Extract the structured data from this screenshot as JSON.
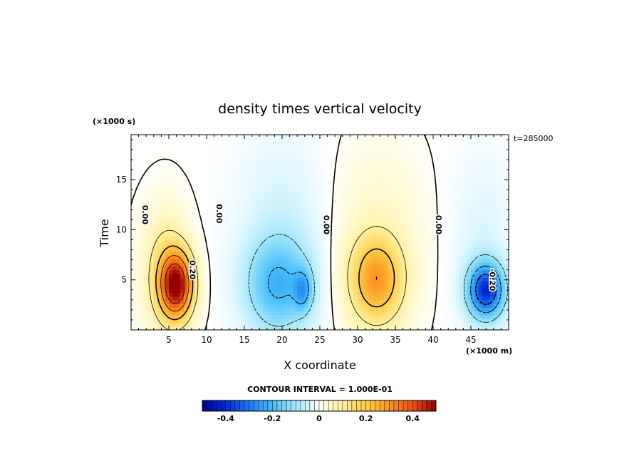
{
  "chart_data": {
    "type": "heatmap",
    "title": "density times vertical velocity",
    "xlabel": "X coordinate",
    "ylabel": "Time",
    "x_units": "(×1000 m)",
    "y_units": "(×1000 s)",
    "time_stamp": "t=285000",
    "xlim": [
      0,
      50
    ],
    "ylim": [
      0,
      19.5
    ],
    "x_ticks": [
      5,
      10,
      15,
      20,
      25,
      30,
      35,
      40,
      45
    ],
    "y_ticks": [
      5,
      10,
      15
    ],
    "contour_interval_text": "CONTOUR INTERVAL = 1.000E-01",
    "colorbar": {
      "range": [
        -0.5,
        0.5
      ],
      "ticks": [
        "-0.4",
        "-0.2",
        "0",
        "0.2",
        "0.4"
      ],
      "tick_values": [
        -0.4,
        -0.2,
        0,
        0.2,
        0.4
      ]
    },
    "contour_labels": [
      {
        "text": "0.00",
        "x": 1.5,
        "y": 11.5
      },
      {
        "text": "0.00",
        "x": 11.3,
        "y": 11.6
      },
      {
        "text": "0.00",
        "x": 25.5,
        "y": 10.5
      },
      {
        "text": "0.00",
        "x": 40.4,
        "y": 10.5
      },
      {
        "text": "0.20",
        "x": 7.8,
        "y": 6.0
      },
      {
        "text": "-0.20",
        "x": 47.5,
        "y": 5.0
      }
    ],
    "cells": [
      {
        "x": 6.0,
        "y": 4.5,
        "amp": 0.46,
        "sx": 2.2,
        "sy": 3.3
      },
      {
        "x": 4.5,
        "y": 6.0,
        "amp": 0.12,
        "sx": 3.0,
        "sy": 6.0
      },
      {
        "x": 19.5,
        "y": 4.5,
        "amp": -0.18,
        "sx": 4.2,
        "sy": 4.5
      },
      {
        "x": 22.8,
        "y": 4.0,
        "amp": -0.15,
        "sx": 1.2,
        "sy": 2.0
      },
      {
        "x": 20.0,
        "y": 9.0,
        "amp": -0.05,
        "sx": 6.0,
        "sy": 10.0
      },
      {
        "x": 32.5,
        "y": 5.0,
        "amp": 0.26,
        "sx": 3.5,
        "sy": 4.2
      },
      {
        "x": 32.5,
        "y": 9.0,
        "amp": 0.05,
        "sx": 6.0,
        "sy": 9.0
      },
      {
        "x": 47.0,
        "y": 4.0,
        "amp": -0.38,
        "sx": 2.3,
        "sy": 2.6
      },
      {
        "x": 46.5,
        "y": 8.0,
        "amp": -0.04,
        "sx": 4.0,
        "sy": 9.0
      }
    ]
  }
}
